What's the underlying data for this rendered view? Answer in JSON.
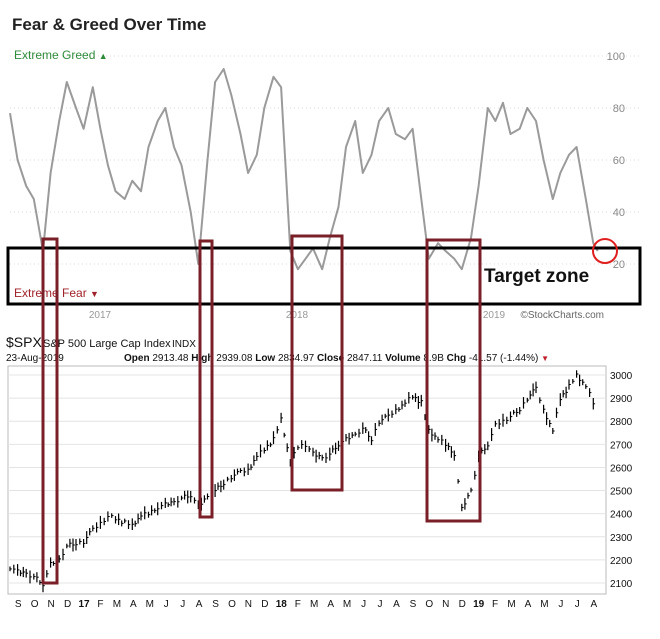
{
  "top_panel": {
    "title": "Fear & Greed Over Time",
    "extreme_greed": "Extreme Greed",
    "greed_arrow": "▲",
    "extreme_fear": "Extreme Fear",
    "fear_arrow": "▼",
    "target_zone": "Target zone",
    "y_ticks": [
      "100",
      "80",
      "60",
      "40",
      "20"
    ],
    "x_ticks": [
      "2017",
      "2018",
      "2019"
    ],
    "credit": "©StockCharts.com"
  },
  "bottom_panel": {
    "symbol": "$SPX",
    "name": "S&P 500 Large Cap Index",
    "exchange": "INDX",
    "date": "23-Aug-2019",
    "open_label": "Open",
    "open": "2913.48",
    "high_label": "High",
    "high": "2939.08",
    "low_label": "Low",
    "low": "2834.97",
    "close_label": "Close",
    "close": "2847.11",
    "volume_label": "Volume",
    "volume": "8.9B",
    "chg_label": "Chg",
    "chg": "-41.57 (-1.44%)",
    "chg_arrow": "▼",
    "y_ticks": [
      "3000",
      "2900",
      "2800",
      "2700",
      "2600",
      "2500",
      "2400",
      "2300",
      "2200",
      "2100"
    ],
    "x_ticks": [
      "S",
      "O",
      "N",
      "D",
      "17",
      "F",
      "M",
      "A",
      "M",
      "J",
      "J",
      "A",
      "S",
      "O",
      "N",
      "D",
      "18",
      "F",
      "M",
      "A",
      "M",
      "J",
      "J",
      "A",
      "S",
      "O",
      "N",
      "D",
      "19",
      "F",
      "M",
      "A",
      "M",
      "J",
      "J",
      "A"
    ]
  },
  "colors": {
    "greed": "#2e8b3a",
    "fear": "#a0222a",
    "line": "#9a9a9a",
    "highlight_box": "#7a1f27",
    "circle": "#e02020",
    "bars": "#000000"
  },
  "chart_data": [
    {
      "type": "line",
      "title": "Fear & Greed Over Time",
      "ylim": [
        0,
        100
      ],
      "x_range": [
        "2016-09",
        "2019-08"
      ],
      "series": [
        {
          "x": [
            "2016-09-01",
            "2016-09-15",
            "2016-10-01",
            "2016-10-15",
            "2016-11-01",
            "2016-11-15",
            "2016-12-01",
            "2016-12-15",
            "2017-01-01",
            "2017-01-15",
            "2017-02-01",
            "2017-02-15",
            "2017-03-01",
            "2017-03-15",
            "2017-04-01",
            "2017-04-15",
            "2017-05-01",
            "2017-05-15",
            "2017-06-01",
            "2017-06-15",
            "2017-07-01",
            "2017-07-15",
            "2017-08-01",
            "2017-08-15",
            "2017-09-01",
            "2017-09-15",
            "2017-10-01",
            "2017-10-15",
            "2017-11-01",
            "2017-11-15",
            "2017-12-01",
            "2017-12-15",
            "2018-01-01",
            "2018-01-15",
            "2018-02-01",
            "2018-02-15",
            "2018-03-01",
            "2018-03-15",
            "2018-04-01",
            "2018-04-15",
            "2018-05-01",
            "2018-05-15",
            "2018-06-01",
            "2018-06-15",
            "2018-07-01",
            "2018-07-15",
            "2018-08-01",
            "2018-08-15",
            "2018-09-01",
            "2018-09-15",
            "2018-10-01",
            "2018-10-15",
            "2018-11-01",
            "2018-11-15",
            "2018-12-01",
            "2018-12-15",
            "2019-01-01",
            "2019-01-15",
            "2019-02-01",
            "2019-02-15",
            "2019-03-01",
            "2019-03-15",
            "2019-04-01",
            "2019-04-15",
            "2019-05-01",
            "2019-05-15",
            "2019-06-01",
            "2019-06-15",
            "2019-07-01",
            "2019-07-15",
            "2019-08-01",
            "2019-08-15",
            "2019-08-23"
          ],
          "values": [
            78,
            60,
            50,
            45,
            25,
            55,
            75,
            90,
            80,
            72,
            88,
            72,
            58,
            48,
            45,
            52,
            48,
            65,
            75,
            80,
            65,
            58,
            40,
            20,
            60,
            90,
            95,
            85,
            70,
            55,
            62,
            80,
            92,
            88,
            25,
            18,
            22,
            26,
            18,
            30,
            42,
            65,
            75,
            55,
            62,
            75,
            80,
            70,
            68,
            72,
            45,
            22,
            28,
            25,
            22,
            18,
            30,
            50,
            80,
            75,
            82,
            70,
            72,
            80,
            75,
            60,
            45,
            55,
            62,
            65,
            45,
            28,
            25
          ]
        }
      ],
      "bands": [
        "Extreme Greed",
        "Extreme Fear"
      ],
      "annotations": [
        "Target zone"
      ]
    },
    {
      "type": "bar",
      "title": "$SPX S&P 500 Large Cap Index INDX",
      "ylim": [
        2050,
        3060
      ],
      "x_range": [
        "2016-09",
        "2019-08"
      ],
      "series": [
        {
          "x": [
            "2016-09-01",
            "2016-09-15",
            "2016-10-01",
            "2016-10-15",
            "2016-11-01",
            "2016-11-15",
            "2016-12-01",
            "2016-12-15",
            "2017-01-01",
            "2017-01-15",
            "2017-02-01",
            "2017-02-15",
            "2017-03-01",
            "2017-03-15",
            "2017-04-01",
            "2017-04-15",
            "2017-05-01",
            "2017-05-15",
            "2017-06-01",
            "2017-06-15",
            "2017-07-01",
            "2017-07-15",
            "2017-08-01",
            "2017-08-15",
            "2017-09-01",
            "2017-09-15",
            "2017-10-01",
            "2017-10-15",
            "2017-11-01",
            "2017-11-15",
            "2017-12-01",
            "2017-12-15",
            "2018-01-01",
            "2018-01-15",
            "2018-02-01",
            "2018-02-15",
            "2018-03-01",
            "2018-03-15",
            "2018-04-01",
            "2018-04-15",
            "2018-05-01",
            "2018-05-15",
            "2018-06-01",
            "2018-06-15",
            "2018-07-01",
            "2018-07-15",
            "2018-08-01",
            "2018-08-15",
            "2018-09-01",
            "2018-09-15",
            "2018-10-01",
            "2018-10-15",
            "2018-11-01",
            "2018-11-15",
            "2018-12-01",
            "2018-12-15",
            "2019-01-01",
            "2019-01-15",
            "2019-02-01",
            "2019-02-15",
            "2019-03-01",
            "2019-03-15",
            "2019-04-01",
            "2019-04-15",
            "2019-05-01",
            "2019-05-15",
            "2019-06-01",
            "2019-06-15",
            "2019-07-01",
            "2019-07-15",
            "2019-08-01",
            "2019-08-15",
            "2019-08-23"
          ],
          "values": [
            2170,
            2150,
            2140,
            2130,
            2095,
            2180,
            2200,
            2260,
            2270,
            2280,
            2330,
            2360,
            2390,
            2380,
            2360,
            2350,
            2390,
            2400,
            2430,
            2440,
            2450,
            2470,
            2480,
            2430,
            2470,
            2500,
            2530,
            2560,
            2580,
            2590,
            2650,
            2680,
            2720,
            2810,
            2620,
            2690,
            2700,
            2660,
            2640,
            2660,
            2700,
            2720,
            2740,
            2770,
            2720,
            2800,
            2820,
            2850,
            2880,
            2910,
            2880,
            2760,
            2720,
            2700,
            2660,
            2420,
            2500,
            2650,
            2700,
            2780,
            2800,
            2820,
            2850,
            2900,
            2940,
            2850,
            2760,
            2900,
            2950,
            3000,
            2950,
            2880,
            2847
          ]
        }
      ]
    }
  ]
}
